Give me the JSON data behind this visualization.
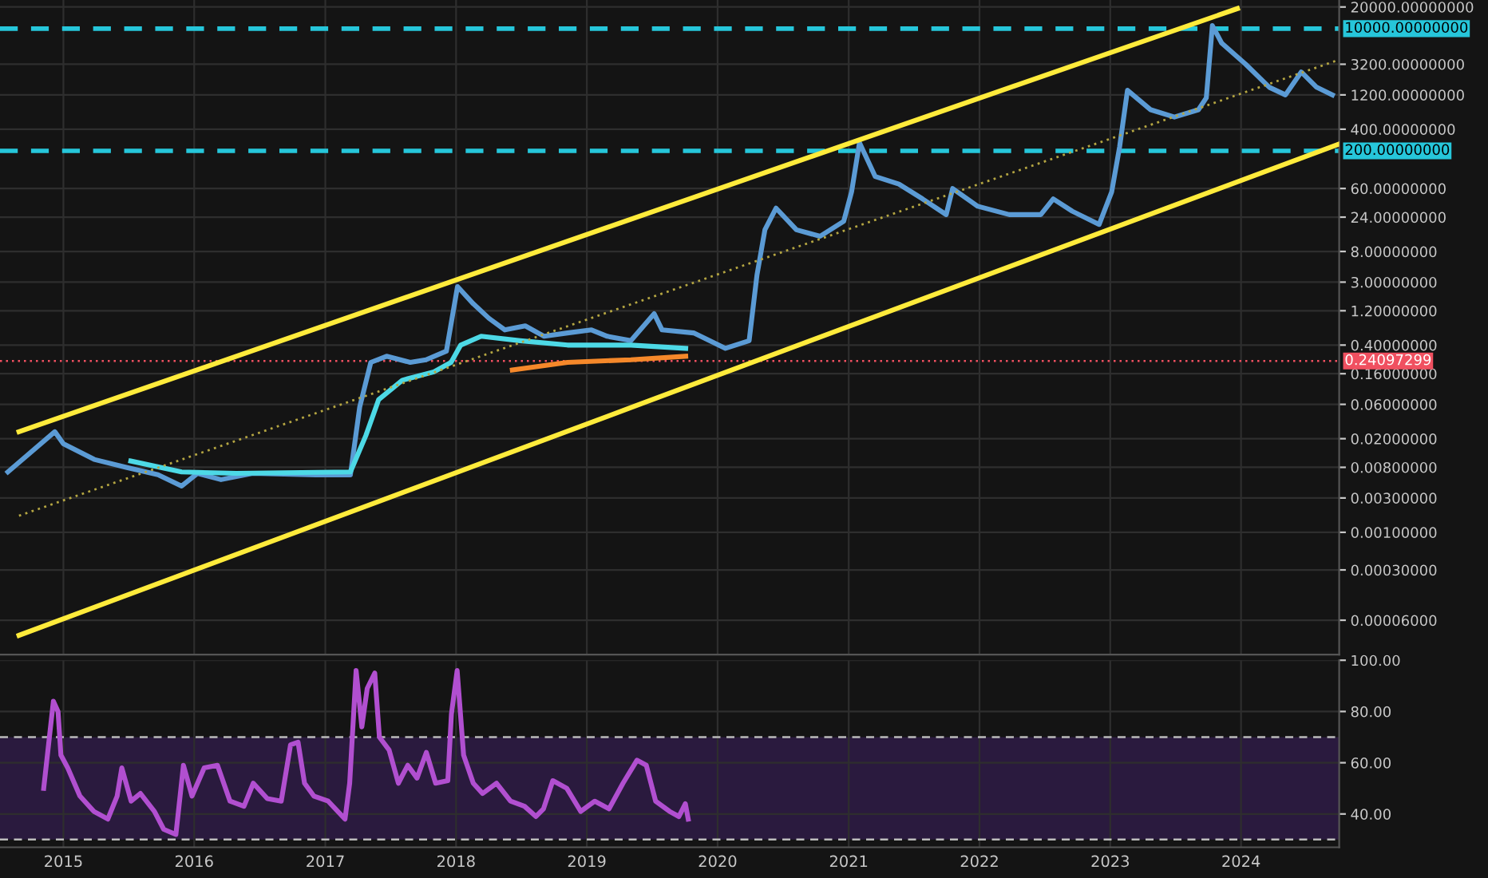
{
  "chart_data": [
    {
      "type": "line",
      "log": "y",
      "grid": true,
      "tick_labels": "y",
      "xlim": [
        "2014-07-08",
        "2024-10-01"
      ],
      "xticks": [
        {
          "value": "2015-01-01",
          "label": null
        },
        {
          "value": "2016-01-01",
          "label": null
        },
        {
          "value": "2017-01-01",
          "label": null
        },
        {
          "value": "2018-01-01",
          "label": null
        },
        {
          "value": "2019-01-01",
          "label": null
        },
        {
          "value": "2020-01-01",
          "label": null
        },
        {
          "value": "2021-01-01",
          "label": null
        },
        {
          "value": "2022-01-01",
          "label": null
        },
        {
          "value": "2023-01-01",
          "label": null
        },
        {
          "value": "2024-01-01",
          "label": null
        }
      ],
      "ylim": [
        2e-05,
        25000
      ],
      "yticks": [
        {
          "value": 20000,
          "label": "20000.00000000"
        },
        {
          "value": 3200,
          "label": "3200.00000000"
        },
        {
          "value": 1200,
          "label": "1200.00000000"
        },
        {
          "value": 400,
          "label": "400.00000000"
        },
        {
          "value": 60,
          "label": "60.00000000"
        },
        {
          "value": 24,
          "label": "24.00000000"
        },
        {
          "value": 8,
          "label": "8.00000000"
        },
        {
          "value": 3,
          "label": "3.00000000"
        },
        {
          "value": 1.2,
          "label": "1.20000000"
        },
        {
          "value": 0.4,
          "label": "0.40000000"
        },
        {
          "value": 0.16,
          "label": "0.16000000"
        },
        {
          "value": 0.06,
          "label": "0.06000000"
        },
        {
          "value": 0.02,
          "label": "0.02000000"
        },
        {
          "value": 0.008,
          "label": "0.00800000"
        },
        {
          "value": 0.003,
          "label": "0.00300000"
        },
        {
          "value": 0.001,
          "label": "0.00100000"
        },
        {
          "value": 0.0003,
          "label": "0.00030000"
        },
        {
          "value": 6e-05,
          "label": "0.00006000"
        }
      ],
      "ref_lines": [
        {
          "axis": "y",
          "value": 10000,
          "label": "10000.00000000",
          "color": "#26c6da",
          "line_style": "dashed"
        },
        {
          "axis": "y",
          "value": 200,
          "label": "200.00000000",
          "color": "#26c6da",
          "line_style": "dashed"
        },
        {
          "axis": "y",
          "value": 0.24097299,
          "label": "0.24097299",
          "color": "#f05060",
          "line_style": "dotted"
        }
      ],
      "series": [
        {
          "color": "#5b9bd5",
          "line_style": "solid",
          "x": [
            "2014-07-30",
            "2014-12-08",
            "2015-01-01",
            "2015-03-28",
            "2015-06-25",
            "2015-09-22",
            "2015-11-27",
            "2016-01-10",
            "2016-03-16",
            "2016-06-12",
            "2016-12-05",
            "2017-03-12",
            "2017-04-07",
            "2017-05-08",
            "2017-06-21",
            "2017-08-26",
            "2017-10-09",
            "2017-12-05",
            "2018-01-05",
            "2018-02-18",
            "2018-04-03",
            "2018-05-17",
            "2018-07-13",
            "2018-09-04",
            "2018-11-08",
            "2019-01-14",
            "2019-02-27",
            "2019-05-04",
            "2019-07-08",
            "2019-07-30",
            "2019-10-26",
            "2020-01-23",
            "2020-03-29",
            "2020-04-20",
            "2020-05-12",
            "2020-06-12",
            "2020-08-08",
            "2020-10-13",
            "2020-12-18",
            "2021-01-09",
            "2021-01-31",
            "2021-03-16",
            "2021-05-21",
            "2021-07-26",
            "2021-09-30",
            "2021-10-18",
            "2021-12-27",
            "2022-03-25",
            "2022-06-21",
            "2022-07-26",
            "2022-09-17",
            "2022-12-01",
            "2023-01-05",
            "2023-01-27",
            "2023-02-18",
            "2023-04-24",
            "2023-06-29",
            "2023-09-04",
            "2023-09-26",
            "2023-10-13",
            "2023-11-08",
            "2024-01-14",
            "2024-03-20",
            "2024-05-04",
            "2024-06-17",
            "2024-07-30",
            "2024-09-12"
          ],
          "values": [
            0.0069,
            0.025,
            0.017,
            0.0103,
            0.008,
            0.0063,
            0.0044,
            0.0066,
            0.0054,
            0.0066,
            0.0063,
            0.0063,
            0.055,
            0.23,
            0.28,
            0.23,
            0.25,
            0.33,
            2.6,
            1.5,
            0.94,
            0.65,
            0.74,
            0.53,
            0.59,
            0.65,
            0.53,
            0.46,
            1.09,
            0.65,
            0.59,
            0.36,
            0.46,
            3.8,
            16,
            32,
            16,
            13,
            21,
            54,
            260,
            88,
            69,
            43,
            26,
            60,
            34,
            26,
            26,
            43,
            29,
            19,
            54,
            226,
            1390,
            745,
            590,
            745,
            1090,
            11000,
            6300,
            3200,
            1530,
            1200,
            2500,
            1530,
            1200
          ]
        },
        {
          "color": "#4dd9e6",
          "line_style": "solid",
          "x": [
            "2015-07-08",
            "2015-11-27",
            "2016-04-28",
            "2017-03-12",
            "2017-04-24",
            "2017-05-30",
            "2017-08-04",
            "2017-10-31",
            "2017-12-18",
            "2018-01-14",
            "2018-03-12",
            "2018-06-29",
            "2018-11-08",
            "2019-05-04",
            "2019-10-04"
          ],
          "values": [
            0.0098,
            0.0069,
            0.0066,
            0.0069,
            0.022,
            0.07,
            0.13,
            0.17,
            0.23,
            0.4,
            0.53,
            0.46,
            0.4,
            0.4,
            0.36
          ]
        },
        {
          "color": "#f5882a",
          "line_style": "solid",
          "x": [
            "2018-06-07",
            "2018-11-08",
            "2019-05-04",
            "2019-10-04"
          ],
          "values": [
            0.18,
            0.23,
            0.25,
            0.28
          ]
        },
        {
          "color": "#ffeb3b",
          "line_style": "solid",
          "x": [
            "2014-08-30",
            "2023-12-22"
          ],
          "values": [
            0.025,
            19000
          ]
        },
        {
          "color": "#ffeb3b",
          "line_style": "solid",
          "x": [
            "2014-08-30",
            "2024-10-01"
          ],
          "values": [
            3.7e-05,
            250
          ]
        },
        {
          "color": "#b5a642",
          "line_style": "dotted",
          "x": [
            "2014-08-30",
            "2024-10-01"
          ],
          "values": [
            0.0017,
            3700
          ]
        }
      ]
    },
    {
      "type": "line",
      "grid": true,
      "xlim": [
        "2014-07-08",
        "2024-10-01"
      ],
      "xticks": [
        {
          "value": "2015-01-01",
          "label": "2015"
        },
        {
          "value": "2016-01-01",
          "label": "2016"
        },
        {
          "value": "2017-01-01",
          "label": "2017"
        },
        {
          "value": "2018-01-01",
          "label": "2018"
        },
        {
          "value": "2019-01-01",
          "label": "2019"
        },
        {
          "value": "2020-01-01",
          "label": "2020"
        },
        {
          "value": "2021-01-01",
          "label": "2021"
        },
        {
          "value": "2022-01-01",
          "label": "2022"
        },
        {
          "value": "2023-01-01",
          "label": "2023"
        },
        {
          "value": "2024-01-01",
          "label": "2024"
        }
      ],
      "ylim": [
        27,
        100
      ],
      "yticks": [
        {
          "value": 40,
          "label": "40.00"
        },
        {
          "value": 60,
          "label": "60.00"
        },
        {
          "value": 80,
          "label": "80.00"
        },
        {
          "value": 100,
          "label": "100.00"
        }
      ],
      "bands": [
        {
          "axis": "y",
          "from": 30,
          "to": 70,
          "color": "#2a1a3e"
        }
      ],
      "ref_lines": [
        {
          "axis": "y",
          "value": 70,
          "color": "#bbbbbb",
          "line_style": "dashed"
        },
        {
          "axis": "y",
          "value": 30,
          "color": "#bbbbbb",
          "line_style": "dashed"
        }
      ],
      "series": [
        {
          "color": "#b14fd0",
          "line_style": "solid",
          "x": [
            "2014-11-07",
            "2014-12-04",
            "2014-12-17",
            "2014-12-25",
            "2015-01-13",
            "2015-02-16",
            "2015-03-27",
            "2015-05-05",
            "2015-05-31",
            "2015-06-13",
            "2015-07-09",
            "2015-08-04",
            "2015-09-12",
            "2015-10-08",
            "2015-11-11",
            "2015-12-02",
            "2015-12-26",
            "2016-01-29",
            "2016-03-06",
            "2016-04-10",
            "2016-05-19",
            "2016-06-14",
            "2016-07-23",
            "2016-08-31",
            "2016-09-26",
            "2016-10-17",
            "2016-11-04",
            "2016-11-30",
            "2017-01-09",
            "2017-02-25",
            "2017-03-10",
            "2017-03-28",
            "2017-04-13",
            "2017-04-28",
            "2017-05-19",
            "2017-06-01",
            "2017-06-28",
            "2017-07-24",
            "2017-08-19",
            "2017-09-14",
            "2017-10-10",
            "2017-11-05",
            "2017-12-09",
            "2017-12-19",
            "2018-01-04",
            "2018-01-22",
            "2018-02-18",
            "2018-03-16",
            "2018-04-24",
            "2018-06-02",
            "2018-07-11",
            "2018-08-12",
            "2018-09-02",
            "2018-09-28",
            "2018-11-06",
            "2018-12-15",
            "2019-01-23",
            "2019-03-04",
            "2019-04-12",
            "2019-05-21",
            "2019-06-16",
            "2019-07-12",
            "2019-08-20",
            "2019-09-15",
            "2019-10-03",
            "2019-10-11"
          ],
          "values": [
            50,
            84,
            80,
            63,
            58,
            47,
            41,
            38,
            47,
            58,
            45,
            48,
            41,
            34,
            32,
            59,
            47,
            58,
            59,
            45,
            43,
            52,
            46,
            45,
            67,
            68,
            52,
            47,
            45,
            38,
            52,
            96,
            74,
            89,
            95,
            70,
            65,
            52,
            59,
            54,
            64,
            52,
            53,
            79,
            96,
            63,
            52,
            48,
            52,
            45,
            43,
            39,
            42,
            53,
            50,
            41,
            45,
            42,
            52,
            61,
            59,
            45,
            41,
            39,
            44,
            38
          ]
        }
      ]
    }
  ]
}
